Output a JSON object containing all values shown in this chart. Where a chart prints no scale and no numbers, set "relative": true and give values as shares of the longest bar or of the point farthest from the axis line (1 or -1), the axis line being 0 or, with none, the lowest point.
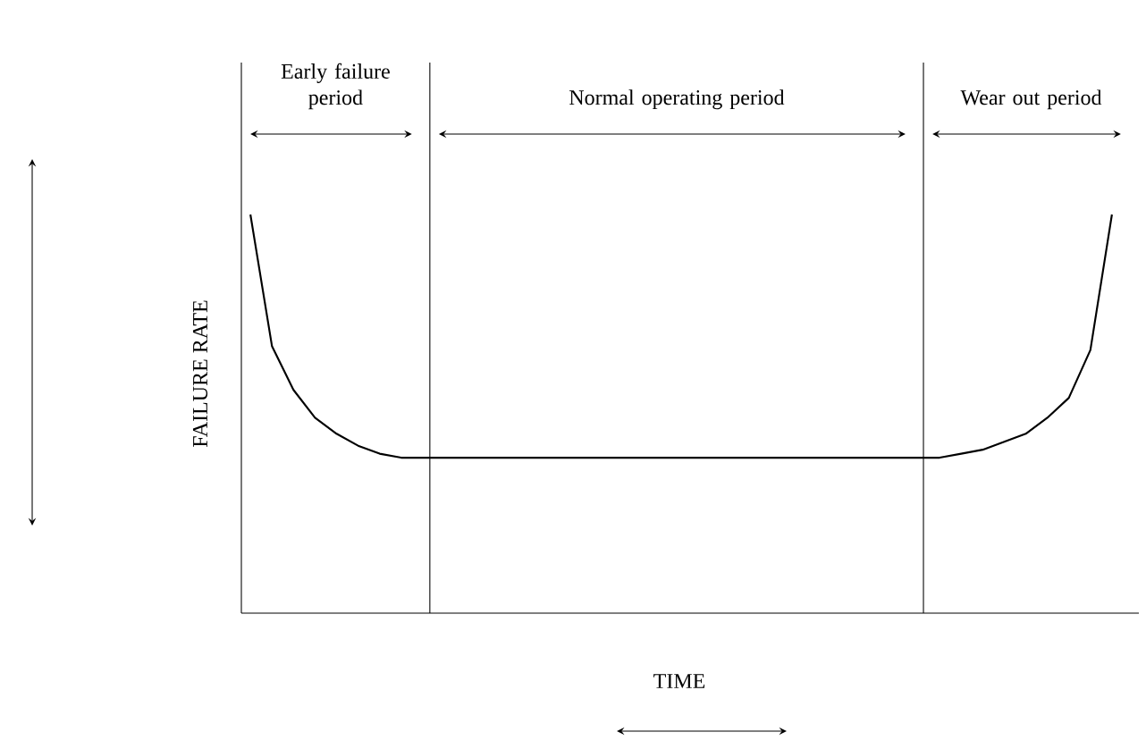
{
  "chart_data": {
    "type": "line",
    "relative": true,
    "tick_labels": false,
    "xlabel": "TIME",
    "ylabel": "FAILURE RATE",
    "color": "#000000",
    "categories": [
      null,
      null,
      null,
      null,
      null,
      null,
      null,
      null,
      null,
      null,
      null,
      null,
      null,
      null,
      null,
      null,
      null,
      null,
      null,
      null,
      null,
      null,
      null,
      null,
      null,
      null,
      null,
      null,
      null,
      null,
      null,
      null,
      null,
      null,
      null,
      null,
      null,
      null,
      null,
      null,
      null
    ],
    "values": [
      1.0,
      0.67,
      0.56,
      0.49,
      0.45,
      0.42,
      0.4,
      0.39,
      0.39,
      0.39,
      0.39,
      0.39,
      0.39,
      0.39,
      0.39,
      0.39,
      0.39,
      0.39,
      0.39,
      0.39,
      0.39,
      0.39,
      0.39,
      0.39,
      0.39,
      0.39,
      0.39,
      0.39,
      0.39,
      0.39,
      0.39,
      0.39,
      0.39,
      0.4,
      0.41,
      0.43,
      0.45,
      0.49,
      0.54,
      0.66,
      1.0
    ],
    "annotations": [
      "Early failure period",
      "Normal operating period",
      "Wear out period"
    ]
  }
}
